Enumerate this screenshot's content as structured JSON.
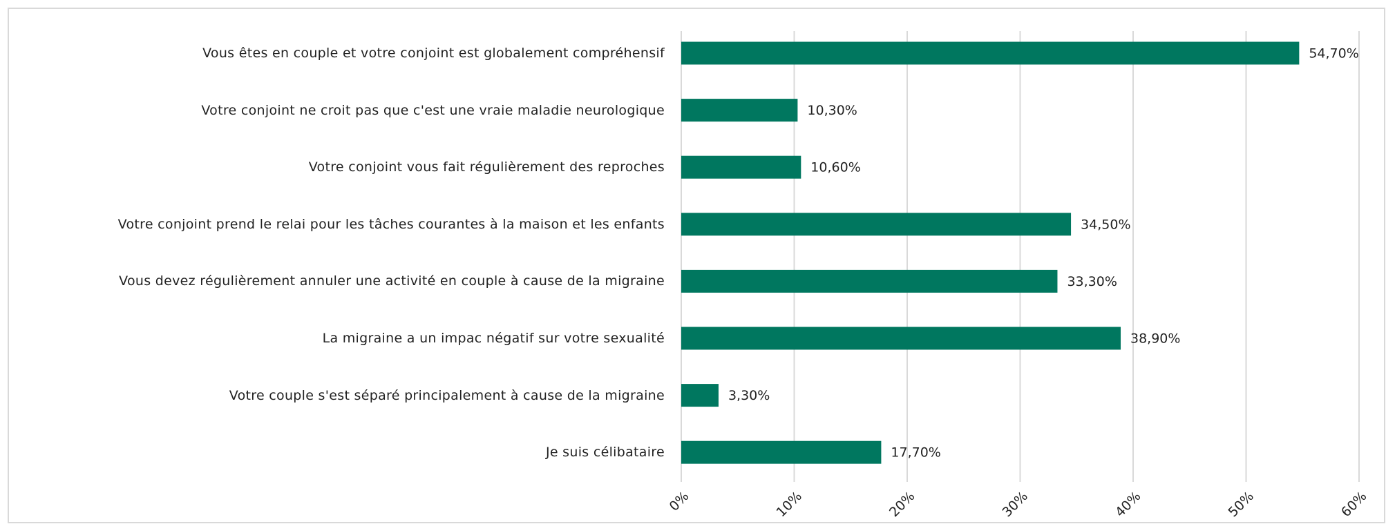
{
  "chart_data": {
    "type": "bar",
    "orientation": "horizontal",
    "categories": [
      "Vous êtes en couple et votre conjoint est globalement compréhensif",
      "Votre conjoint ne croit pas que c'est une vraie maladie neurologique",
      "Votre conjoint vous fait régulièrement des reproches",
      "Votre conjoint prend le relai pour les tâches courantes à la maison et les enfants",
      "Vous devez régulièrement annuler une activité en couple à cause de la migraine",
      "La migraine a un impac négatif sur votre sexualité",
      "Votre couple s'est séparé principalement à cause de la migraine",
      "Je suis célibataire"
    ],
    "values": [
      54.7,
      10.3,
      10.6,
      34.5,
      33.3,
      38.9,
      3.3,
      17.7
    ],
    "value_labels": [
      "54,70%",
      "10,30%",
      "10,60%",
      "34,50%",
      "33,30%",
      "38,90%",
      "3,30%",
      "17,70%"
    ],
    "color": "#00775f",
    "xlim": [
      0,
      60
    ],
    "xticks": [
      {
        "value": 0,
        "label": "0%"
      },
      {
        "value": 10,
        "label": "10%"
      },
      {
        "value": 20,
        "label": "20%"
      },
      {
        "value": 30,
        "label": "30%"
      },
      {
        "value": 40,
        "label": "40%"
      },
      {
        "value": 50,
        "label": "50%"
      },
      {
        "value": 60,
        "label": "60%"
      }
    ],
    "grid": true
  }
}
